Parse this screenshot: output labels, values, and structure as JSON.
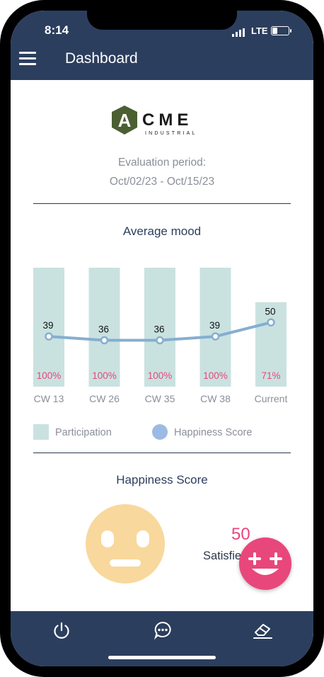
{
  "status_bar": {
    "time": "8:14",
    "network": "LTE"
  },
  "header": {
    "title": "Dashboard",
    "menu_icon": "hamburger-menu-icon"
  },
  "brand": {
    "logo_letter": "A",
    "name": "CME",
    "tagline": "INDUSTRIAL",
    "logo_color": "#4b5f33"
  },
  "evaluation": {
    "label": "Evaluation period:",
    "range": "Oct/02/23 - Oct/15/23"
  },
  "chart_title": "Average mood",
  "chart_data": {
    "type": "bar",
    "categories": [
      "CW 13",
      "CW 26",
      "CW 35",
      "CW 38",
      "Current"
    ],
    "series": [
      {
        "name": "Participation",
        "type": "bar",
        "values": [
          100,
          100,
          100,
          100,
          71
        ],
        "unit": "%",
        "color": "#c9e2e0"
      },
      {
        "name": "Happiness Score",
        "type": "line",
        "values": [
          39,
          36,
          36,
          39,
          50
        ],
        "color": "#86aed0"
      }
    ],
    "participation_labels": [
      "100%",
      "100%",
      "100%",
      "100%",
      "71%"
    ],
    "grid": false,
    "legend_position": "bottom"
  },
  "legend": {
    "participation": "Participation",
    "happiness": "Happiness Score"
  },
  "happiness": {
    "title": "Happiness Score",
    "value": "50",
    "label": "Satisfied",
    "face_icon": "neutral-face-icon"
  },
  "fab": {
    "icon": "add-smiley-icon"
  },
  "bottom_nav": [
    {
      "name": "power-icon"
    },
    {
      "name": "chat-icon"
    },
    {
      "name": "eraser-icon"
    }
  ],
  "colors": {
    "navy": "#2c3e5e",
    "accent_pink": "#e8477c",
    "bar": "#c9e2e0",
    "line": "#86aed0",
    "face": "#f8d89c"
  }
}
